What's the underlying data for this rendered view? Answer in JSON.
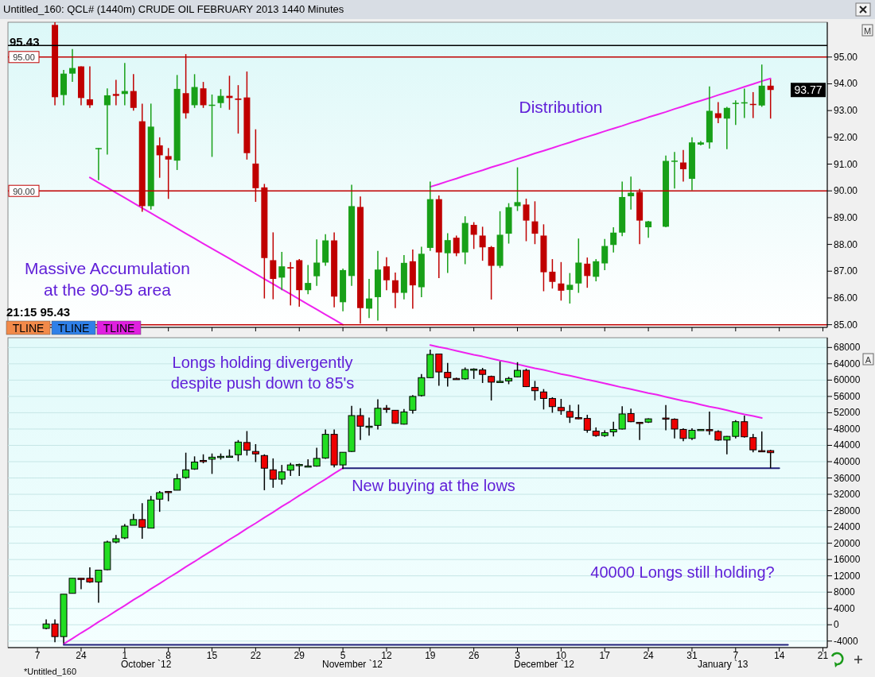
{
  "chart_data": [
    {
      "type": "candlestick",
      "title": "Untitled_160: QCL# (1440m) CRUDE OIL FEBRUARY 2013 1440 Minutes",
      "ylim": [
        84.9,
        96.3
      ],
      "yticks": [
        {
          "value": 85,
          "label": "85.00"
        },
        {
          "value": 86,
          "label": "86.00"
        },
        {
          "value": 87,
          "label": "87.00"
        },
        {
          "value": 88,
          "label": "88.00"
        },
        {
          "value": 89,
          "label": "89.00"
        },
        {
          "value": 90,
          "label": "90.00"
        },
        {
          "value": 91,
          "label": "91.00"
        },
        {
          "value": 92,
          "label": "92.00"
        },
        {
          "value": 93,
          "label": "93.00"
        },
        {
          "value": 94,
          "label": "94.00"
        },
        {
          "value": 95,
          "label": "95.00"
        }
      ],
      "tick_labels": "y",
      "categories": [
        null,
        null,
        null,
        "7",
        null,
        null,
        null,
        null,
        "24",
        null,
        null,
        null,
        null,
        "1",
        null,
        null,
        null,
        null,
        "8",
        null,
        null,
        null,
        null,
        "15",
        null,
        null,
        null,
        null,
        "22",
        null,
        null,
        null,
        null,
        "29",
        null,
        null,
        null,
        null,
        "5",
        null,
        null,
        null,
        null,
        "12",
        null,
        null,
        null,
        null,
        "19",
        null,
        null,
        null,
        null,
        "26",
        null,
        null,
        null,
        null,
        "3",
        null,
        null,
        null,
        null,
        "10",
        null,
        null,
        null,
        null,
        "17",
        null,
        null,
        null,
        null,
        "24",
        null,
        null,
        null,
        null,
        "31",
        null,
        null,
        null,
        null,
        "7",
        null,
        null,
        null,
        null,
        "14",
        null,
        null,
        null,
        null,
        "21"
      ],
      "ohlc": [
        null,
        null,
        null,
        null,
        null,
        [
          96.2,
          96.3,
          93.2,
          93.5
        ],
        [
          93.58,
          94.52,
          93.2,
          94.38
        ],
        [
          94.38,
          95.3,
          94.07,
          94.59
        ],
        [
          94.65,
          94.65,
          93.2,
          93.47
        ],
        [
          93.42,
          94.65,
          93.1,
          93.2
        ],
        [
          91.6,
          91.6,
          90.4,
          91.6
        ],
        [
          93.2,
          93.83,
          91.36,
          93.57
        ],
        [
          93.62,
          94.15,
          93.2,
          93.55
        ],
        [
          93.62,
          94.78,
          93.2,
          93.73
        ],
        [
          93.73,
          94.36,
          93.0,
          93.1
        ],
        [
          92.6,
          93.26,
          89.22,
          89.43
        ],
        [
          89.43,
          93.26,
          89.3,
          92.4
        ],
        [
          91.7,
          92.0,
          90.49,
          91.33
        ],
        [
          91.3,
          91.6,
          89.7,
          91.17
        ],
        [
          91.13,
          94.33,
          90.78,
          93.81
        ],
        [
          93.65,
          95.11,
          92.7,
          92.9
        ],
        [
          93.2,
          94.36,
          93.1,
          93.88
        ],
        [
          93.83,
          94.07,
          93.1,
          93.2
        ],
        [
          93.2,
          93.6,
          91.27,
          93.22
        ],
        [
          93.28,
          93.8,
          93.1,
          93.55
        ],
        [
          93.55,
          94.3,
          93.03,
          93.47
        ],
        [
          93.45,
          93.95,
          92.14,
          93.4
        ],
        [
          93.49,
          94.46,
          91.17,
          91.41
        ],
        [
          91.02,
          92.3,
          89.59,
          90.1
        ],
        [
          90.13,
          90.26,
          85.98,
          87.49
        ],
        [
          87.41,
          88.45,
          85.95,
          86.71
        ],
        [
          86.76,
          87.72,
          86.29,
          87.18
        ],
        [
          87.15,
          87.34,
          85.72,
          87.1
        ],
        [
          87.41,
          87.45,
          85.67,
          86.29
        ],
        [
          86.29,
          87.23,
          86.14,
          86.56
        ],
        [
          86.81,
          88.19,
          86.45,
          87.32
        ],
        [
          87.32,
          88.38,
          87.2,
          88.15
        ],
        [
          88.15,
          88.45,
          85.65,
          86.05
        ],
        [
          85.84,
          87.1,
          85.5,
          87.04
        ],
        [
          86.82,
          90.23,
          86.45,
          89.43
        ],
        [
          89.4,
          89.79,
          85.04,
          85.62
        ],
        [
          85.6,
          86.71,
          85.25,
          85.98
        ],
        [
          86.03,
          87.76,
          85.15,
          87.06
        ],
        [
          87.18,
          87.52,
          86.29,
          86.66
        ],
        [
          86.66,
          86.95,
          85.62,
          86.19
        ],
        [
          86.19,
          87.6,
          85.95,
          87.31
        ],
        [
          87.37,
          87.81,
          85.6,
          86.47
        ],
        [
          86.4,
          87.91,
          86.03,
          87.65
        ],
        [
          87.87,
          90.35,
          87.76,
          89.69
        ],
        [
          89.69,
          89.83,
          86.74,
          87.7
        ],
        [
          87.67,
          88.42,
          86.93,
          88.16
        ],
        [
          88.25,
          88.33,
          87.56,
          87.67
        ],
        [
          87.7,
          89.05,
          87.26,
          88.8
        ],
        [
          88.73,
          88.83,
          87.83,
          88.36
        ],
        [
          88.33,
          88.66,
          87.39,
          87.89
        ],
        [
          87.9,
          87.94,
          85.94,
          87.2
        ],
        [
          87.2,
          89.24,
          87.12,
          88.36
        ],
        [
          88.4,
          89.54,
          88.03,
          89.39
        ],
        [
          89.43,
          90.88,
          89.25,
          89.58
        ],
        [
          89.49,
          89.71,
          88.12,
          88.89
        ],
        [
          88.86,
          89.61,
          88.01,
          88.4
        ],
        [
          88.33,
          88.75,
          86.25,
          86.96
        ],
        [
          86.98,
          87.45,
          86.35,
          86.6
        ],
        [
          86.54,
          87.34,
          85.9,
          86.27
        ],
        [
          86.3,
          86.93,
          85.79,
          86.49
        ],
        [
          86.54,
          88.22,
          86.19,
          87.32
        ],
        [
          87.28,
          87.51,
          86.38,
          86.82
        ],
        [
          86.79,
          87.45,
          86.62,
          87.37
        ],
        [
          87.29,
          88.2,
          87.04,
          87.94
        ],
        [
          87.98,
          88.64,
          87.7,
          88.44
        ],
        [
          88.44,
          90.35,
          88.31,
          89.77
        ],
        [
          89.8,
          90.53,
          89.3,
          89.93
        ],
        [
          89.96,
          90.07,
          88.01,
          88.89
        ],
        [
          88.64,
          88.88,
          88.25,
          88.86
        ],
        null,
        [
          88.66,
          91.32,
          88.64,
          91.12
        ],
        [
          91.1,
          91.45,
          90.09,
          91.13
        ],
        [
          91.06,
          91.53,
          90.35,
          90.81
        ],
        [
          90.45,
          92.0,
          90.02,
          91.81
        ],
        [
          91.73,
          91.86,
          91.7,
          91.81
        ],
        [
          91.81,
          93.9,
          91.58,
          92.99
        ],
        [
          92.9,
          93.32,
          92.53,
          92.72
        ],
        [
          92.7,
          93.14,
          91.56,
          93.1
        ],
        [
          93.27,
          93.38,
          92.46,
          93.29
        ],
        [
          93.27,
          93.82,
          92.72,
          93.31
        ],
        [
          93.25,
          93.69,
          92.72,
          93.23
        ],
        [
          93.19,
          94.72,
          93.14,
          93.93
        ],
        [
          93.93,
          94.17,
          92.7,
          93.77
        ],
        null,
        null,
        null,
        null,
        null,
        null
      ],
      "colors": [
        null,
        null,
        null,
        null,
        null,
        "#c00000",
        "#18a018",
        "#18a018",
        "#c00000",
        "#c00000",
        "#18a018",
        "#18a018",
        "#c00000",
        "#18a018",
        "#c00000",
        "#c00000",
        "#18a018",
        "#c00000",
        "#c00000",
        "#18a018",
        "#c00000",
        "#18a018",
        "#c00000",
        "#18a018",
        "#18a018",
        "#c00000",
        "#c00000",
        "#c00000",
        "#c00000",
        "#c00000",
        "#c00000",
        "#18a018",
        "#c00000",
        "#c00000",
        "#18a018",
        "#18a018",
        "#18a018",
        "#c00000",
        "#18a018",
        "#18a018",
        "#c00000",
        "#18a018",
        "#18a018",
        "#c00000",
        "#c00000",
        "#18a018",
        "#c00000",
        "#18a018",
        "#18a018",
        "#c00000",
        "#18a018",
        "#c00000",
        "#18a018",
        "#c00000",
        "#c00000",
        "#c00000",
        "#18a018",
        "#18a018",
        "#18a018",
        "#c00000",
        "#c00000",
        "#c00000",
        "#c00000",
        "#c00000",
        "#18a018",
        "#18a018",
        "#c00000",
        "#18a018",
        "#18a018",
        "#18a018",
        "#18a018",
        "#18a018",
        "#c00000",
        "#18a018",
        null,
        "#18a018",
        "#18a018",
        "#c00000",
        "#18a018",
        "#18a018",
        "#18a018",
        "#c00000",
        "#18a018",
        "#18a018",
        "#18a018",
        "#c00000",
        "#18a018",
        "#c00000",
        null,
        null,
        null,
        null,
        null,
        null
      ],
      "series": [
        {
          "type": "line",
          "color": "#ee22ee",
          "values": [
            null,
            null,
            null,
            null,
            null,
            null,
            null,
            null,
            null,
            90.5,
            90.31,
            90.12,
            89.93,
            89.74,
            89.55,
            89.36,
            89.17,
            88.98,
            88.79,
            88.6,
            88.41,
            88.22,
            88.03,
            87.84,
            87.66,
            87.47,
            87.28,
            87.09,
            86.9,
            86.71,
            86.52,
            86.33,
            86.14,
            85.95,
            85.76,
            85.57,
            85.38,
            85.19,
            85.0,
            null,
            null,
            null,
            null,
            null,
            null,
            null,
            null,
            null,
            null,
            null,
            null,
            null,
            null,
            null,
            null,
            null,
            null,
            null,
            null,
            null,
            null,
            null,
            null,
            null,
            null,
            null,
            null,
            null,
            null,
            null,
            null,
            null,
            null,
            null,
            null,
            null,
            null,
            null,
            null,
            null,
            null,
            null,
            null,
            null,
            null,
            null,
            null,
            null,
            null,
            null,
            null,
            null,
            null,
            null
          ]
        },
        {
          "type": "line",
          "color": "#ee22ee",
          "values": [
            null,
            null,
            null,
            null,
            null,
            null,
            null,
            null,
            null,
            null,
            null,
            null,
            null,
            null,
            null,
            null,
            null,
            null,
            null,
            null,
            null,
            null,
            null,
            null,
            null,
            null,
            null,
            null,
            null,
            null,
            null,
            null,
            null,
            null,
            null,
            null,
            null,
            null,
            null,
            null,
            null,
            null,
            null,
            null,
            null,
            null,
            null,
            null,
            90.15,
            90.25,
            90.36,
            90.46,
            90.57,
            90.67,
            90.77,
            90.88,
            90.98,
            91.08,
            91.19,
            91.29,
            91.4,
            91.5,
            91.6,
            91.71,
            91.81,
            91.92,
            92.02,
            92.12,
            92.23,
            92.33,
            92.43,
            92.54,
            92.64,
            92.75,
            92.85,
            92.95,
            93.06,
            93.16,
            93.27,
            93.37,
            93.47,
            93.58,
            93.68,
            93.78,
            93.89,
            93.99,
            94.1,
            94.2,
            null,
            null,
            null,
            null,
            null,
            null
          ]
        }
      ],
      "ref_lines": [
        {
          "axis": "y",
          "value": 95.43,
          "label": "95.43",
          "color": "#000000"
        },
        {
          "axis": "y",
          "value": 95,
          "label": "95.00",
          "color": "#c00000"
        },
        {
          "axis": "y",
          "value": 90,
          "label": "90.00",
          "color": "#c00000"
        },
        {
          "axis": "y",
          "value": 85,
          "color": "#c00000"
        }
      ],
      "annotations": [
        "Massive Accumulation\nat the 90-95 area",
        "Distribution",
        "21:15 95.43",
        "TLINE",
        "TLINE",
        "TLINE",
        "M",
        {
          "text": "93.77",
          "y": 93.77
        }
      ]
    },
    {
      "type": "candlestick",
      "ylim": [
        -5600,
        70400
      ],
      "yticks": [
        -4000,
        0,
        4000,
        8000,
        12000,
        16000,
        20000,
        24000,
        28000,
        32000,
        36000,
        40000,
        44000,
        48000,
        52000,
        56000,
        60000,
        64000,
        68000
      ],
      "grid": "y",
      "categories": [
        null,
        null,
        null,
        "7",
        null,
        null,
        null,
        null,
        "24",
        null,
        null,
        null,
        null,
        "1",
        null,
        null,
        null,
        null,
        "8",
        null,
        null,
        null,
        null,
        "15",
        null,
        null,
        null,
        null,
        "22",
        null,
        null,
        null,
        null,
        "29",
        null,
        null,
        null,
        null,
        "5",
        null,
        null,
        null,
        null,
        "12",
        null,
        null,
        null,
        null,
        "19",
        null,
        null,
        null,
        null,
        "26",
        null,
        null,
        null,
        null,
        "3",
        null,
        null,
        null,
        null,
        "10",
        null,
        null,
        null,
        null,
        "17",
        null,
        null,
        null,
        null,
        "24",
        null,
        null,
        null,
        null,
        "31",
        null,
        null,
        null,
        null,
        "7",
        null,
        null,
        null,
        null,
        "14",
        null,
        null,
        null,
        null,
        "21"
      ],
      "ohlc": [
        null,
        null,
        null,
        null,
        [
          -900,
          1300,
          -1100,
          200
        ],
        [
          200,
          1300,
          -4300,
          -2900
        ],
        [
          -2900,
          7500,
          -4600,
          7500
        ],
        [
          7700,
          11400,
          7700,
          11400
        ],
        [
          11400,
          11400,
          8700,
          11300
        ],
        [
          11400,
          14100,
          10300,
          10500
        ],
        [
          10500,
          13400,
          5400,
          13400
        ],
        [
          13500,
          20600,
          13400,
          20300
        ],
        [
          20300,
          22000,
          20000,
          21100
        ],
        [
          21300,
          24700,
          21000,
          24200
        ],
        [
          24400,
          27200,
          24400,
          25800
        ],
        [
          25800,
          29800,
          21100,
          23900
        ],
        [
          23700,
          31600,
          23700,
          30600
        ],
        [
          30800,
          32800,
          27700,
          32400
        ],
        [
          32700,
          32800,
          30300,
          32600
        ],
        [
          33000,
          37000,
          33000,
          35800
        ],
        [
          36100,
          42200,
          35800,
          38000
        ],
        [
          38200,
          41300,
          38000,
          39900
        ],
        [
          40300,
          41800,
          39600,
          40200
        ],
        [
          40600,
          42000,
          37000,
          41100
        ],
        [
          41200,
          42000,
          40500,
          41300
        ],
        [
          41300,
          43000,
          41200,
          41350
        ],
        [
          41700,
          45300,
          40100,
          44800
        ],
        [
          44700,
          47500,
          41500,
          42800
        ],
        [
          42500,
          44300,
          39900,
          41900
        ],
        [
          41500,
          41800,
          33000,
          38400
        ],
        [
          38000,
          40800,
          33600,
          35700
        ],
        [
          35700,
          39200,
          34400,
          37500
        ],
        [
          37900,
          39700,
          36500,
          39200
        ],
        [
          39200,
          39500,
          36500,
          39300
        ],
        [
          38900,
          40600,
          38800,
          38950
        ],
        [
          38900,
          43400,
          38800,
          40800
        ],
        [
          40900,
          47900,
          40700,
          46700
        ],
        [
          46700,
          47900,
          38600,
          39200
        ],
        [
          39200,
          42300,
          38200,
          42300
        ],
        [
          42500,
          53700,
          42400,
          51300
        ],
        [
          51300,
          53100,
          45300,
          48700
        ],
        [
          48600,
          50800,
          46400,
          48700
        ],
        [
          48900,
          55300,
          47900,
          53100
        ],
        [
          53100,
          53900,
          52000,
          52900
        ],
        [
          52600,
          52600,
          49300,
          49400
        ],
        [
          49200,
          52900,
          49100,
          52200
        ],
        [
          52600,
          56300,
          51800,
          56000
        ],
        [
          56200,
          61500,
          56000,
          60600
        ],
        [
          60600,
          67500,
          60500,
          66300
        ],
        [
          66400,
          66400,
          58600,
          62000
        ],
        [
          61900,
          64200,
          58400,
          60600
        ],
        [
          60400,
          60600,
          60300,
          60300
        ],
        [
          60300,
          63100,
          60100,
          62600
        ],
        [
          62600,
          62900,
          60300,
          62700
        ],
        [
          62500,
          63000,
          59300,
          61400
        ],
        [
          60900,
          61100,
          55000,
          59500
        ],
        [
          59650,
          64600,
          59550,
          59700
        ],
        [
          59800,
          60800,
          59000,
          60400
        ],
        [
          60800,
          64400,
          60700,
          62400
        ],
        [
          62400,
          62800,
          58300,
          58400
        ],
        [
          58200,
          59800,
          55000,
          57400
        ],
        [
          57100,
          57800,
          52800,
          55500
        ],
        [
          55500,
          55800,
          52000,
          53500
        ],
        [
          53300,
          55400,
          51500,
          52500
        ],
        [
          52300,
          53900,
          49500,
          50900
        ],
        [
          50800,
          54000,
          50400,
          50750
        ],
        [
          50600,
          51500,
          47100,
          47700
        ],
        [
          47500,
          48400,
          46100,
          46400
        ],
        [
          46400,
          47700,
          46100,
          47100
        ],
        [
          47300,
          49800,
          46200,
          47900
        ],
        [
          48000,
          53600,
          47900,
          51700
        ],
        [
          51800,
          53000,
          49700,
          49800
        ],
        [
          49650,
          49750,
          45300,
          49600
        ],
        [
          49700,
          50600,
          49500,
          50500
        ],
        null,
        [
          50700,
          53900,
          47700,
          50600
        ],
        [
          50400,
          50600,
          45700,
          48000
        ],
        [
          47900,
          48200,
          45000,
          45700
        ],
        [
          45700,
          48200,
          45300,
          47700
        ],
        [
          47850,
          47900,
          47850,
          47900
        ],
        [
          47870,
          52300,
          46600,
          47800
        ],
        [
          47400,
          47700,
          45100,
          45300
        ],
        [
          45300,
          46300,
          41800,
          46200
        ],
        [
          46200,
          50200,
          45700,
          49800
        ],
        [
          49800,
          51300,
          45900,
          46100
        ],
        [
          45900,
          46800,
          42300,
          42900
        ],
        [
          42700,
          47400,
          42500,
          42650
        ],
        [
          42700,
          42900,
          38400,
          42200
        ],
        null,
        null,
        null,
        null,
        null,
        null
      ],
      "colors": [
        null,
        null,
        null,
        null,
        "#22dd22",
        "#ee0000",
        "#22dd22",
        "#22dd22",
        "#ee0000",
        "#ee0000",
        "#22dd22",
        "#22dd22",
        "#22dd22",
        "#22dd22",
        "#22dd22",
        "#ee0000",
        "#22dd22",
        "#22dd22",
        "#ee0000",
        "#22dd22",
        "#22dd22",
        "#22dd22",
        "#ee0000",
        "#22dd22",
        "#22dd22",
        "#22dd22",
        "#22dd22",
        "#ee0000",
        "#ee0000",
        "#ee0000",
        "#ee0000",
        "#22dd22",
        "#22dd22",
        "#22dd22",
        "#22dd22",
        "#22dd22",
        "#22dd22",
        "#ee0000",
        "#22dd22",
        "#22dd22",
        "#ee0000",
        "#22dd22",
        "#22dd22",
        "#ee0000",
        "#ee0000",
        "#22dd22",
        "#22dd22",
        "#22dd22",
        "#22dd22",
        "#ee0000",
        "#ee0000",
        "#ee0000",
        "#22dd22",
        "#22dd22",
        "#ee0000",
        "#ee0000",
        "#22dd22",
        "#22dd22",
        "#22dd22",
        "#ee0000",
        "#ee0000",
        "#ee0000",
        "#ee0000",
        "#ee0000",
        "#ee0000",
        "#ee0000",
        "#ee0000",
        "#ee0000",
        "#22dd22",
        "#22dd22",
        "#22dd22",
        "#ee0000",
        "#ee0000",
        "#22dd22",
        null,
        "#ee0000",
        "#ee0000",
        "#ee0000",
        "#22dd22",
        "#22dd22",
        "#ee0000",
        "#ee0000",
        "#22dd22",
        "#22dd22",
        "#ee0000",
        "#ee0000",
        "#ee0000",
        "#ee0000",
        null,
        null,
        null,
        null,
        null,
        null
      ],
      "series": [
        {
          "type": "line",
          "color": "#ee22ee",
          "values": [
            null,
            null,
            null,
            null,
            null,
            null,
            -4700,
            -3400,
            -2000,
            -700,
            700,
            2000,
            3400,
            4700,
            6100,
            7400,
            8800,
            10100,
            11500,
            12800,
            14200,
            15500,
            16900,
            18200,
            19500,
            20900,
            22200,
            23600,
            24900,
            26300,
            27600,
            29000,
            30300,
            31700,
            33000,
            34400,
            35700,
            37100,
            38400,
            null,
            null,
            null,
            null,
            null,
            null,
            null,
            null,
            null,
            null,
            null,
            null,
            null,
            null,
            null,
            null,
            null,
            null,
            null,
            null,
            null,
            null,
            null,
            null,
            null,
            null,
            null,
            null,
            null,
            null,
            null,
            null,
            null,
            null,
            null,
            null,
            null,
            null,
            null,
            null,
            null,
            null,
            null,
            null,
            null,
            null,
            null,
            null,
            null,
            null,
            null,
            null,
            null,
            null,
            null
          ]
        },
        {
          "type": "line",
          "color": "#ee22ee",
          "values": [
            null,
            null,
            null,
            null,
            null,
            null,
            null,
            null,
            null,
            null,
            null,
            null,
            null,
            null,
            null,
            null,
            null,
            null,
            null,
            null,
            null,
            null,
            null,
            null,
            null,
            null,
            null,
            null,
            null,
            null,
            null,
            null,
            null,
            null,
            null,
            null,
            null,
            null,
            null,
            null,
            null,
            null,
            null,
            null,
            null,
            null,
            null,
            null,
            68600,
            68100,
            67700,
            67200,
            66700,
            66200,
            65800,
            65300,
            64800,
            64400,
            63900,
            63400,
            62900,
            62500,
            62000,
            61500,
            61100,
            60600,
            60100,
            59700,
            59200,
            58700,
            58200,
            57800,
            57300,
            56800,
            56400,
            55900,
            55400,
            54900,
            54500,
            54000,
            53500,
            53100,
            52600,
            52100,
            51600,
            51200,
            50700,
            null,
            null,
            null,
            null,
            null,
            null,
            null
          ]
        },
        {
          "type": "line",
          "color": "#20207a",
          "values": [
            null,
            null,
            null,
            null,
            null,
            null,
            null,
            null,
            null,
            null,
            null,
            null,
            null,
            null,
            null,
            null,
            null,
            null,
            null,
            null,
            null,
            null,
            null,
            null,
            null,
            null,
            null,
            null,
            null,
            null,
            null,
            null,
            null,
            null,
            null,
            null,
            null,
            null,
            38400,
            38400,
            38400,
            38400,
            38400,
            38400,
            38400,
            38400,
            38400,
            38400,
            38400,
            38400,
            38400,
            38400,
            38400,
            38400,
            38400,
            38400,
            38400,
            38400,
            38400,
            38400,
            38400,
            38400,
            38400,
            38400,
            38400,
            38400,
            38400,
            38400,
            38400,
            38400,
            38400,
            38400,
            38400,
            38400,
            38400,
            38400,
            38400,
            38400,
            38400,
            38400,
            38400,
            38400,
            38400,
            38400,
            38400,
            38400,
            38400,
            38400,
            38400,
            null,
            null,
            null,
            null,
            null
          ]
        },
        {
          "type": "line",
          "color": "#20207a",
          "values": [
            null,
            null,
            null,
            null,
            null,
            null,
            -4900,
            -4900,
            -4900,
            -4900,
            -4900,
            -4900,
            -4900,
            -4900,
            -4900,
            -4900,
            -4900,
            -4900,
            -4900,
            -4900,
            -4900,
            -4900,
            -4900,
            -4900,
            -4900,
            -4900,
            -4900,
            -4900,
            -4900,
            -4900,
            -4900,
            -4900,
            -4900,
            -4900,
            -4900,
            -4900,
            -4900,
            -4900,
            -4900,
            -4900,
            -4900,
            -4900,
            -4900,
            -4900,
            -4900,
            -4900,
            -4900,
            -4900,
            -4900,
            -4900,
            -4900,
            -4900,
            -4900,
            -4900,
            -4900,
            -4900,
            -4900,
            -4900,
            -4900,
            -4900,
            -4900,
            -4900,
            -4900,
            -4900,
            -4900,
            -4900,
            -4900,
            -4900,
            -4900,
            -4900,
            -4900,
            -4900,
            -4900,
            -4900,
            -4900,
            -4900,
            -4900,
            -4900,
            -4900,
            -4900,
            -4900,
            -4900,
            -4900,
            -4900,
            -4900,
            -4900,
            -4900,
            -4900,
            -4900,
            -4900,
            null,
            null,
            null,
            null
          ]
        }
      ],
      "annotations": [
        "Longs holding divergently\ndespite push down to 85's",
        "New buying at the lows",
        "40000 Longs still holding?",
        "A",
        "October `12",
        "November `12",
        "December `12",
        "January `13",
        "*Untitled_160"
      ]
    }
  ]
}
